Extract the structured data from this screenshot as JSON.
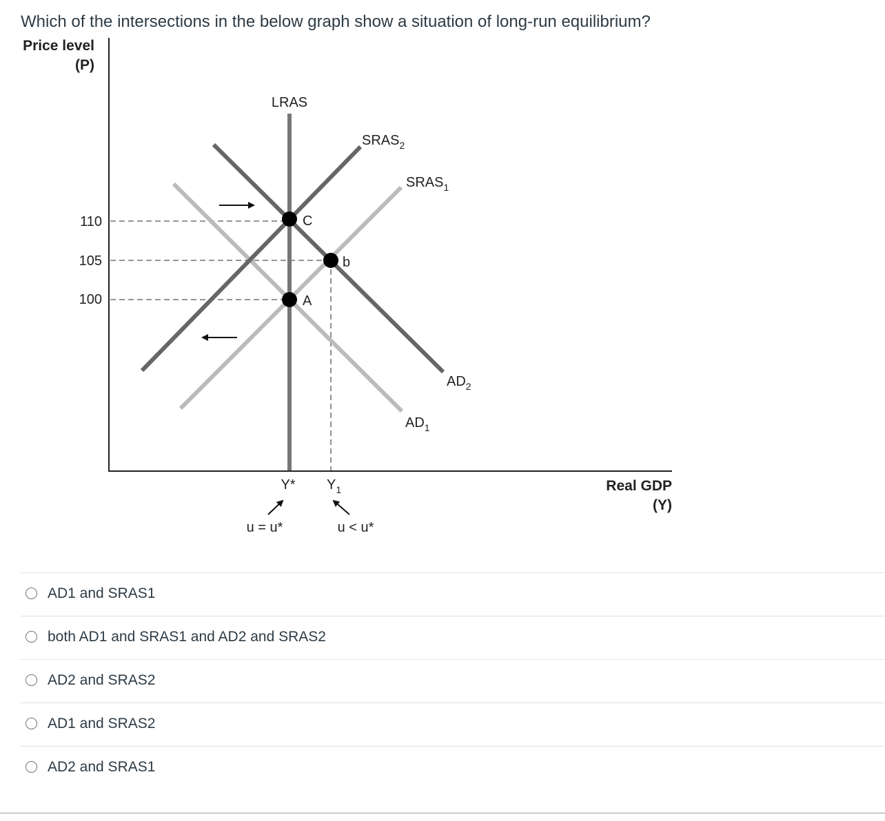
{
  "question": "Which of the intersections in the below graph show a situation of long-run equilibrium?",
  "graph": {
    "y_axis_label_line1": "Price level",
    "y_axis_label_line2": "(P)",
    "x_axis_label_line1": "Real GDP",
    "x_axis_label_line2": "(Y)",
    "lras_label": "LRAS",
    "sras2_label": "SRAS",
    "sras2_sub": "2",
    "sras1_label": "SRAS",
    "sras1_sub": "1",
    "ad2_label": "AD",
    "ad2_sub": "2",
    "ad1_label": "AD",
    "ad1_sub": "1",
    "tick_110": "110",
    "tick_105": "105",
    "tick_100": "100",
    "point_c": "C",
    "point_b": "b",
    "point_a": "A",
    "y_star": "Y*",
    "y1_label": "Y",
    "y1_sub": "1",
    "u_equal": "u = u*",
    "u_less": "u < u*",
    "colors": {
      "dark_curve": "#666666",
      "light_curve": "#bbbbbb",
      "axis": "#222222"
    }
  },
  "answers": [
    {
      "label": "AD1 and SRAS1",
      "selected": false
    },
    {
      "label": "both AD1 and SRAS1 and AD2 and SRAS2",
      "selected": false
    },
    {
      "label": "AD2 and SRAS2",
      "selected": false
    },
    {
      "label": "AD1 and SRAS2",
      "selected": false
    },
    {
      "label": "AD2 and SRAS1",
      "selected": false
    }
  ]
}
